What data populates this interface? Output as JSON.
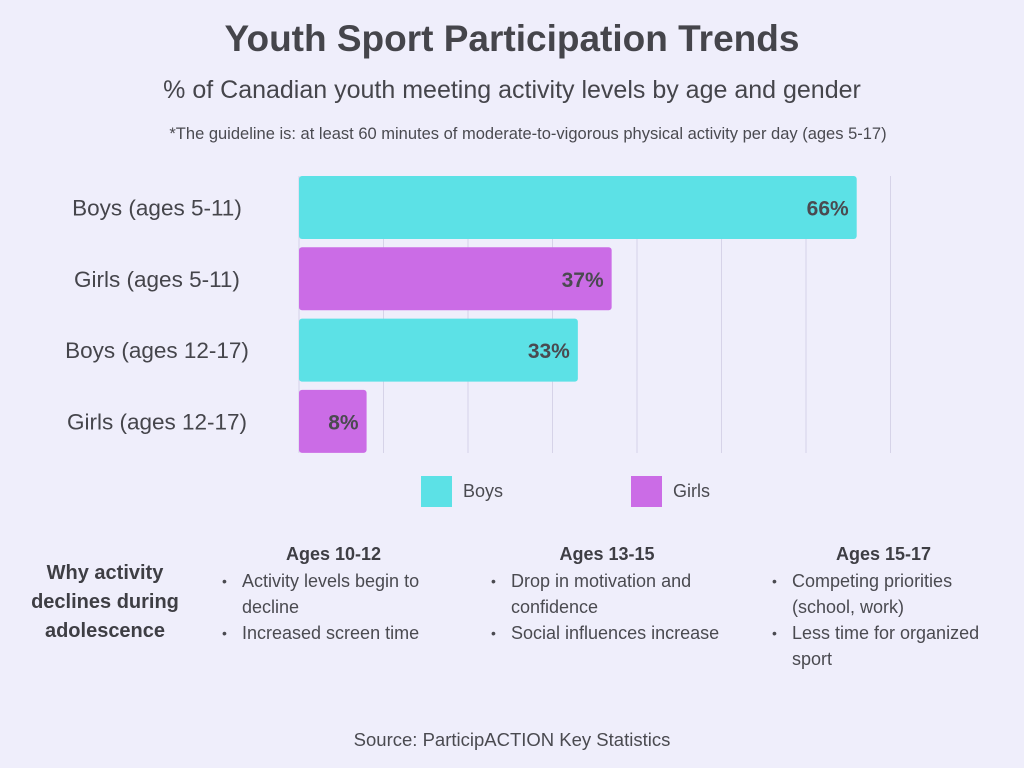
{
  "header": {
    "title": "Youth Sport Participation Trends",
    "subtitle": "% of Canadian youth meeting activity levels by age and gender",
    "note": "*The guideline is: at least 60 minutes of moderate-to-vigorous physical activity per day (ages 5-17)"
  },
  "colors": {
    "boys": "#5ce1e6",
    "girls": "#cb6ce6",
    "grid": "#d6d3e8",
    "text": "#45454b"
  },
  "chart_data": {
    "type": "bar",
    "orientation": "horizontal",
    "categories": [
      "Boys (ages 5-11)",
      "Girls (ages 5-11)",
      "Boys (ages 12-17)",
      "Girls (ages 12-17)"
    ],
    "values": [
      66,
      37,
      33,
      8
    ],
    "value_labels": [
      "66%",
      "37%",
      "33%",
      "8%"
    ],
    "series_of_bar": [
      "Boys",
      "Girls",
      "Boys",
      "Girls"
    ],
    "legend": [
      {
        "name": "Boys",
        "color": "#5ce1e6"
      },
      {
        "name": "Girls",
        "color": "#cb6ce6"
      }
    ],
    "legend_position": "bottom",
    "xlim": [
      0,
      70
    ],
    "grid": true,
    "title": "Youth Sport Participation Trends",
    "subtitle": "% of Canadian youth meeting activity levels by age and gender"
  },
  "why": {
    "label": "Why activity declines during adolescence"
  },
  "columns": [
    {
      "heading": "Ages 10-12",
      "items": [
        "Activity levels begin to decline",
        "Increased screen time"
      ]
    },
    {
      "heading": "Ages 13-15",
      "items": [
        "Drop in motivation and confidence",
        "Social influences increase"
      ]
    },
    {
      "heading": "Ages 15-17",
      "items": [
        "Competing priorities (school, work)",
        "Less time for organized sport"
      ]
    }
  ],
  "footer": {
    "source": "Source: ParticipACTION Key Statistics"
  }
}
